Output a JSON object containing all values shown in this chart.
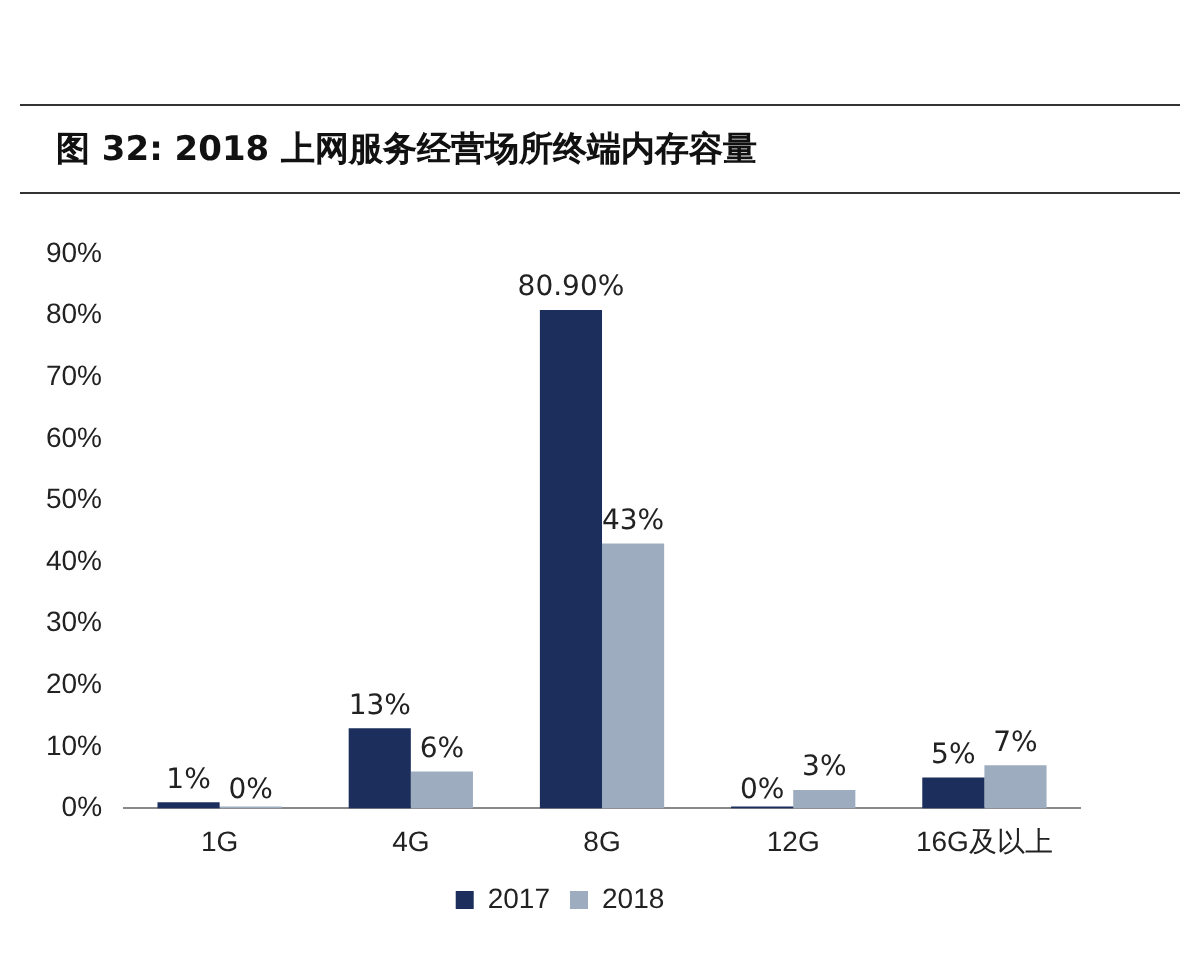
{
  "chart_data": {
    "type": "bar",
    "title": "图 32:  2018 上网服务经营场所终端内存容量",
    "categories": [
      "1G",
      "4G",
      "8G",
      "12G",
      "16G及以上"
    ],
    "series": [
      {
        "name": "2017",
        "color": "#1c2f5c",
        "values": [
          1,
          13,
          80.9,
          0,
          5
        ],
        "value_labels": [
          "1%",
          "13%",
          "80.90%",
          "0%",
          "5%"
        ]
      },
      {
        "name": "2018",
        "color": "#9dadbf",
        "values": [
          0,
          6,
          43,
          3,
          7
        ],
        "value_labels": [
          "0%",
          "6%",
          "43%",
          "3%",
          "7%"
        ]
      }
    ],
    "ylim": [
      0,
      90
    ],
    "yticks": [
      {
        "value": 0,
        "label": "0%"
      },
      {
        "value": 10,
        "label": "10%"
      },
      {
        "value": 20,
        "label": "20%"
      },
      {
        "value": 30,
        "label": "30%"
      },
      {
        "value": 40,
        "label": "40%"
      },
      {
        "value": 50,
        "label": "50%"
      },
      {
        "value": 60,
        "label": "60%"
      },
      {
        "value": 70,
        "label": "70%"
      },
      {
        "value": 80,
        "label": "80%"
      },
      {
        "value": 90,
        "label": "90%"
      }
    ],
    "grid": false,
    "legend": "bottom"
  }
}
